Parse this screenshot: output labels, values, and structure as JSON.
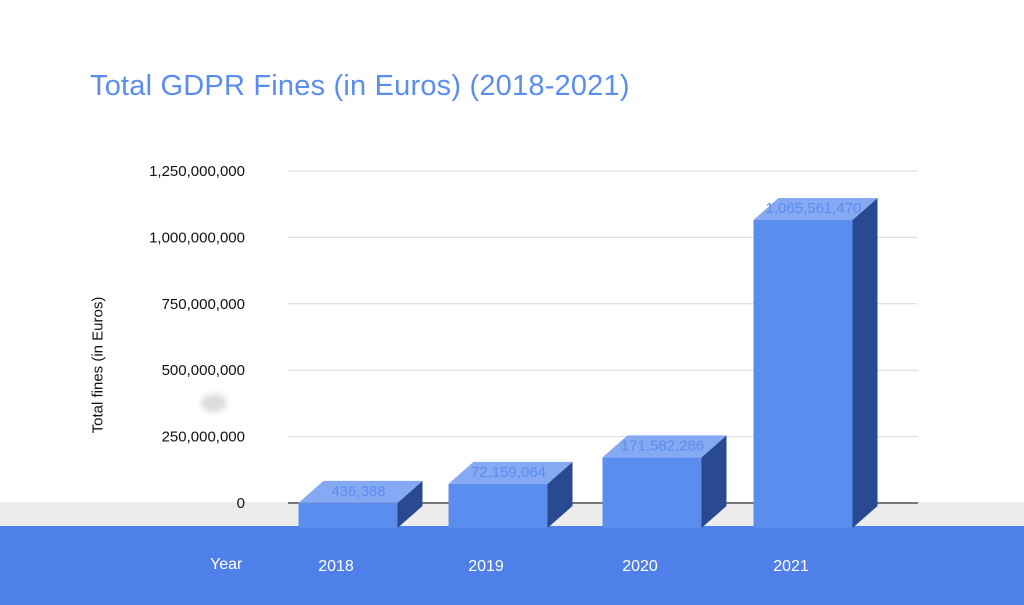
{
  "chart_data": {
    "type": "bar",
    "title": "Total GDPR Fines (in Euros) (2018-2021)",
    "xlabel": "Year",
    "ylabel": "Total fines (in Euros)",
    "categories": [
      "2018",
      "2019",
      "2020",
      "2021"
    ],
    "values": [
      436388,
      72159064,
      171582286,
      1065561470
    ],
    "data_labels": [
      "436,388",
      "72,159,064",
      "171,582,286",
      "1,065,561,470"
    ],
    "y_ticks": [
      0,
      250000000,
      500000000,
      750000000,
      1000000000,
      1250000000
    ],
    "y_tick_labels": [
      "0",
      "250,000,000",
      "500,000,000",
      "750,000,000",
      "1,000,000,000",
      "1,250,000,000"
    ],
    "ylim": [
      0,
      1250000000
    ],
    "grid": true,
    "legend": "none",
    "colors": {
      "bar_front": "#5b8def",
      "bar_top": "#86a9f3",
      "bar_side": "#294a91",
      "title": "#5b8def",
      "data_label": "#5b8def",
      "axis_band": "#4f80ea",
      "gridline": "#d9d9d9"
    }
  }
}
